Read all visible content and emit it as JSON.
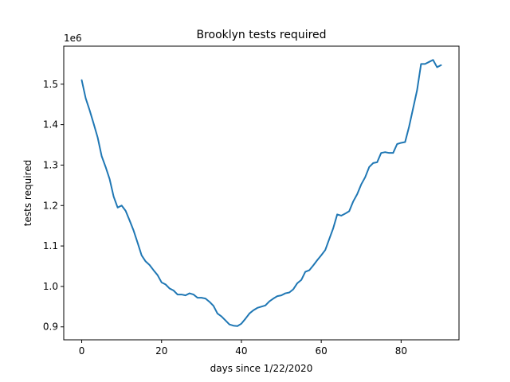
{
  "chart_data": {
    "type": "line",
    "title": "Brooklyn tests required",
    "xlabel": "days since 1/22/2020",
    "ylabel": "tests required",
    "y_multiplier_label": "1e6",
    "xlim": [
      -4.5,
      94.5
    ],
    "ylim": [
      0.868,
      1.594
    ],
    "x_ticks": [
      0,
      20,
      40,
      60,
      80
    ],
    "x_tick_labels": [
      "0",
      "20",
      "40",
      "60",
      "80"
    ],
    "y_ticks": [
      0.9,
      1.0,
      1.1,
      1.2,
      1.3,
      1.4,
      1.5
    ],
    "y_tick_labels": [
      "0.9",
      "1.0",
      "1.1",
      "1.2",
      "1.3",
      "1.4",
      "1.5"
    ],
    "grid": false,
    "color": "#1f77b4",
    "series": [
      {
        "x": [
          0,
          1,
          2,
          3,
          4,
          5,
          6,
          7,
          8,
          9,
          10,
          11,
          12,
          13,
          14,
          15,
          16,
          17,
          18,
          19,
          20,
          21,
          22,
          23,
          24,
          25,
          26,
          27,
          28,
          29,
          30,
          31,
          32,
          33,
          34,
          35,
          36,
          37,
          38,
          39,
          40,
          41,
          42,
          43,
          44,
          45,
          46,
          47,
          48,
          49,
          50,
          51,
          52,
          53,
          54,
          55,
          56,
          57,
          58,
          59,
          60,
          61,
          62,
          63,
          64,
          65,
          66,
          67,
          68,
          69,
          70,
          71,
          72,
          73,
          74,
          75,
          76,
          77,
          78,
          79,
          80,
          81,
          82,
          83,
          84,
          85,
          86,
          87,
          88,
          89,
          90
        ],
        "y": [
          1.51,
          1.465,
          1.435,
          1.402,
          1.368,
          1.322,
          1.295,
          1.265,
          1.222,
          1.195,
          1.2,
          1.187,
          1.163,
          1.138,
          1.108,
          1.077,
          1.062,
          1.053,
          1.04,
          1.028,
          1.01,
          1.005,
          0.995,
          0.99,
          0.98,
          0.98,
          0.978,
          0.983,
          0.98,
          0.972,
          0.972,
          0.97,
          0.962,
          0.952,
          0.933,
          0.926,
          0.916,
          0.906,
          0.903,
          0.902,
          0.908,
          0.92,
          0.933,
          0.941,
          0.947,
          0.95,
          0.953,
          0.963,
          0.97,
          0.976,
          0.978,
          0.983,
          0.985,
          0.993,
          1.008,
          1.016,
          1.036,
          1.04,
          1.052,
          1.065,
          1.077,
          1.09,
          1.117,
          1.144,
          1.178,
          1.175,
          1.18,
          1.186,
          1.21,
          1.228,
          1.252,
          1.27,
          1.295,
          1.305,
          1.307,
          1.33,
          1.332,
          1.33,
          1.33,
          1.352,
          1.355,
          1.357,
          1.395,
          1.44,
          1.485,
          1.55,
          1.55,
          1.555,
          1.56,
          1.542,
          1.547
        ]
      }
    ]
  }
}
